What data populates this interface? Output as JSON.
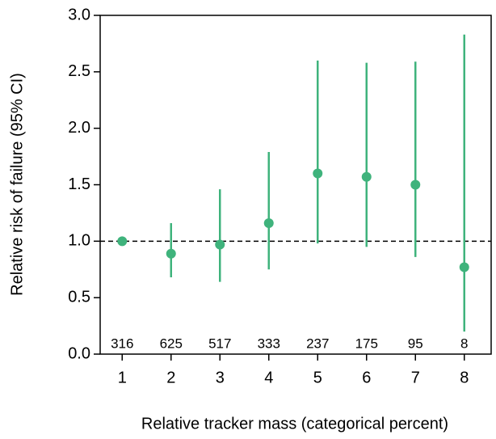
{
  "chart_data": {
    "type": "errorpoint",
    "x_label": "Relative tracker mass (categorical percent)",
    "y_label": "Relative risk of failure (95% CI)",
    "categories": [
      "1",
      "2",
      "3",
      "4",
      "5",
      "6",
      "7",
      "8"
    ],
    "values": [
      1.0,
      0.89,
      0.97,
      1.16,
      1.6,
      1.57,
      1.5,
      0.77
    ],
    "lower": [
      null,
      0.68,
      0.64,
      0.75,
      0.98,
      0.95,
      0.86,
      0.2
    ],
    "upper": [
      null,
      1.16,
      1.46,
      1.79,
      2.6,
      2.58,
      2.59,
      2.83
    ],
    "counts": [
      316,
      625,
      517,
      333,
      237,
      175,
      95,
      8
    ],
    "color": "#3fb37c",
    "reference_line": 1.0,
    "ylim": [
      0,
      3
    ],
    "yticks": [
      {
        "value": 0,
        "label": "0.0"
      },
      {
        "value": 0.5,
        "label": "0.5"
      },
      {
        "value": 1,
        "label": "1.0"
      },
      {
        "value": 1.5,
        "label": "1.5"
      },
      {
        "value": 2,
        "label": "2.0"
      },
      {
        "value": 2.5,
        "label": "2.5"
      },
      {
        "value": 3,
        "label": "3.0"
      }
    ]
  }
}
